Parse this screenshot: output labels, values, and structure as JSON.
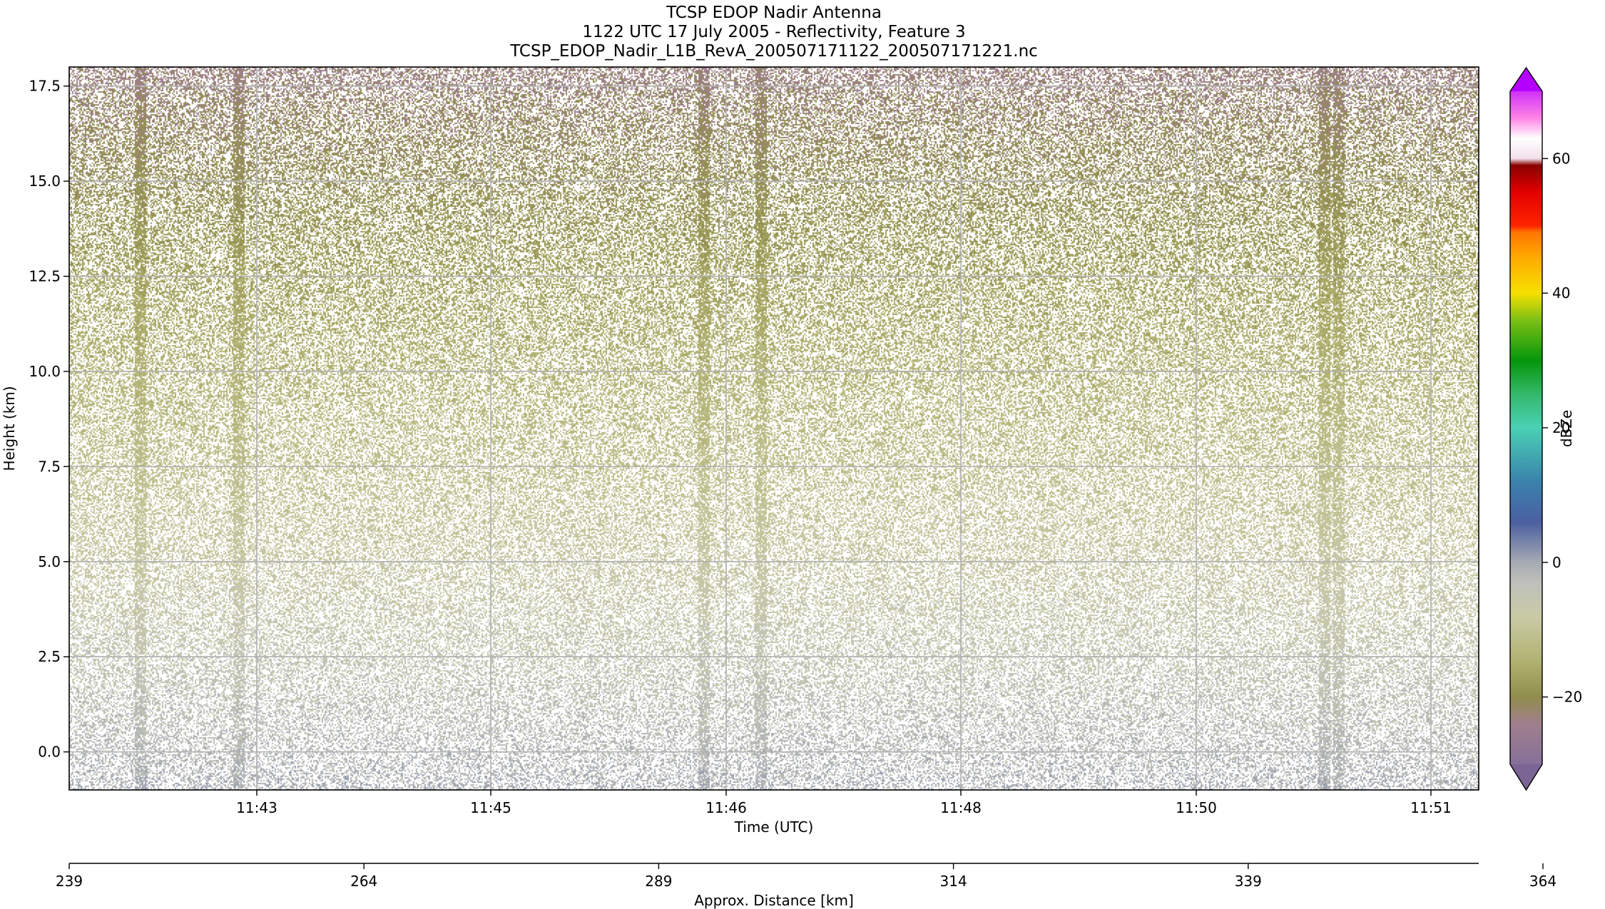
{
  "chart_data": {
    "type": "heatmap",
    "title_lines": [
      "TCSP EDOP Nadir Antenna",
      "1122 UTC 17 July 2005 - Reflectivity, Feature 3",
      "TCSP_EDOP_Nadir_L1B_RevA_200507171122_200507171221.nc"
    ],
    "xlabel": "Time (UTC)",
    "ylabel": "Height (km)",
    "x_tick_labels": [
      "11:43",
      "11:45",
      "11:46",
      "11:48",
      "11:50",
      "11:51"
    ],
    "y_tick_labels": [
      "0.0",
      "2.5",
      "5.0",
      "7.5",
      "10.0",
      "12.5",
      "15.0",
      "17.5"
    ],
    "y_ticks": [
      0.0,
      2.5,
      5.0,
      7.5,
      10.0,
      12.5,
      15.0,
      17.5
    ],
    "ylim": [
      -1.0,
      18.0
    ],
    "grid": true,
    "secondary_xaxis": {
      "label": "Approx. Distance [km]",
      "ticks": [
        239,
        264,
        289,
        314,
        339,
        364
      ],
      "tick_labels": [
        "239",
        "264",
        "289",
        "314",
        "339",
        "364"
      ],
      "range": [
        239,
        359
      ]
    },
    "colorbar": {
      "label": "dBZe",
      "range": [
        -30,
        70
      ],
      "ticks": [
        -20,
        0,
        20,
        40,
        60
      ],
      "tick_labels": [
        "−20",
        "0",
        "20",
        "40",
        "60"
      ],
      "extend": "both",
      "stops": [
        {
          "v": -30,
          "c": "#86709a"
        },
        {
          "v": -24,
          "c": "#a07f8d"
        },
        {
          "v": -20,
          "c": "#8f8d4c"
        },
        {
          "v": -15,
          "c": "#b0b06e"
        },
        {
          "v": -8,
          "c": "#c9cba6"
        },
        {
          "v": -3,
          "c": "#bfc0bb"
        },
        {
          "v": 0,
          "c": "#a6aab2"
        },
        {
          "v": 6,
          "c": "#4b5fa1"
        },
        {
          "v": 12,
          "c": "#3a82ac"
        },
        {
          "v": 20,
          "c": "#49d1b5"
        },
        {
          "v": 25,
          "c": "#34b86a"
        },
        {
          "v": 30,
          "c": "#05960b"
        },
        {
          "v": 36,
          "c": "#7dc014"
        },
        {
          "v": 40,
          "c": "#f6e000"
        },
        {
          "v": 45,
          "c": "#ffad00"
        },
        {
          "v": 49,
          "c": "#ff7700"
        },
        {
          "v": 50,
          "c": "#ff2400"
        },
        {
          "v": 55,
          "c": "#e30000"
        },
        {
          "v": 59,
          "c": "#880000"
        },
        {
          "v": 60,
          "c": "#f3e0ea"
        },
        {
          "v": 63,
          "c": "#ffffff"
        },
        {
          "v": 66,
          "c": "#ff84e6"
        },
        {
          "v": 70,
          "c": "#d030f8"
        }
      ],
      "under_color": "#7a6595",
      "over_color": "#b400ff"
    },
    "field_description_colors": {
      "upper": "#8b8a46",
      "mid": "#b8ba80",
      "lower": "#a9acb5",
      "streak": "#b6b8b8"
    }
  }
}
